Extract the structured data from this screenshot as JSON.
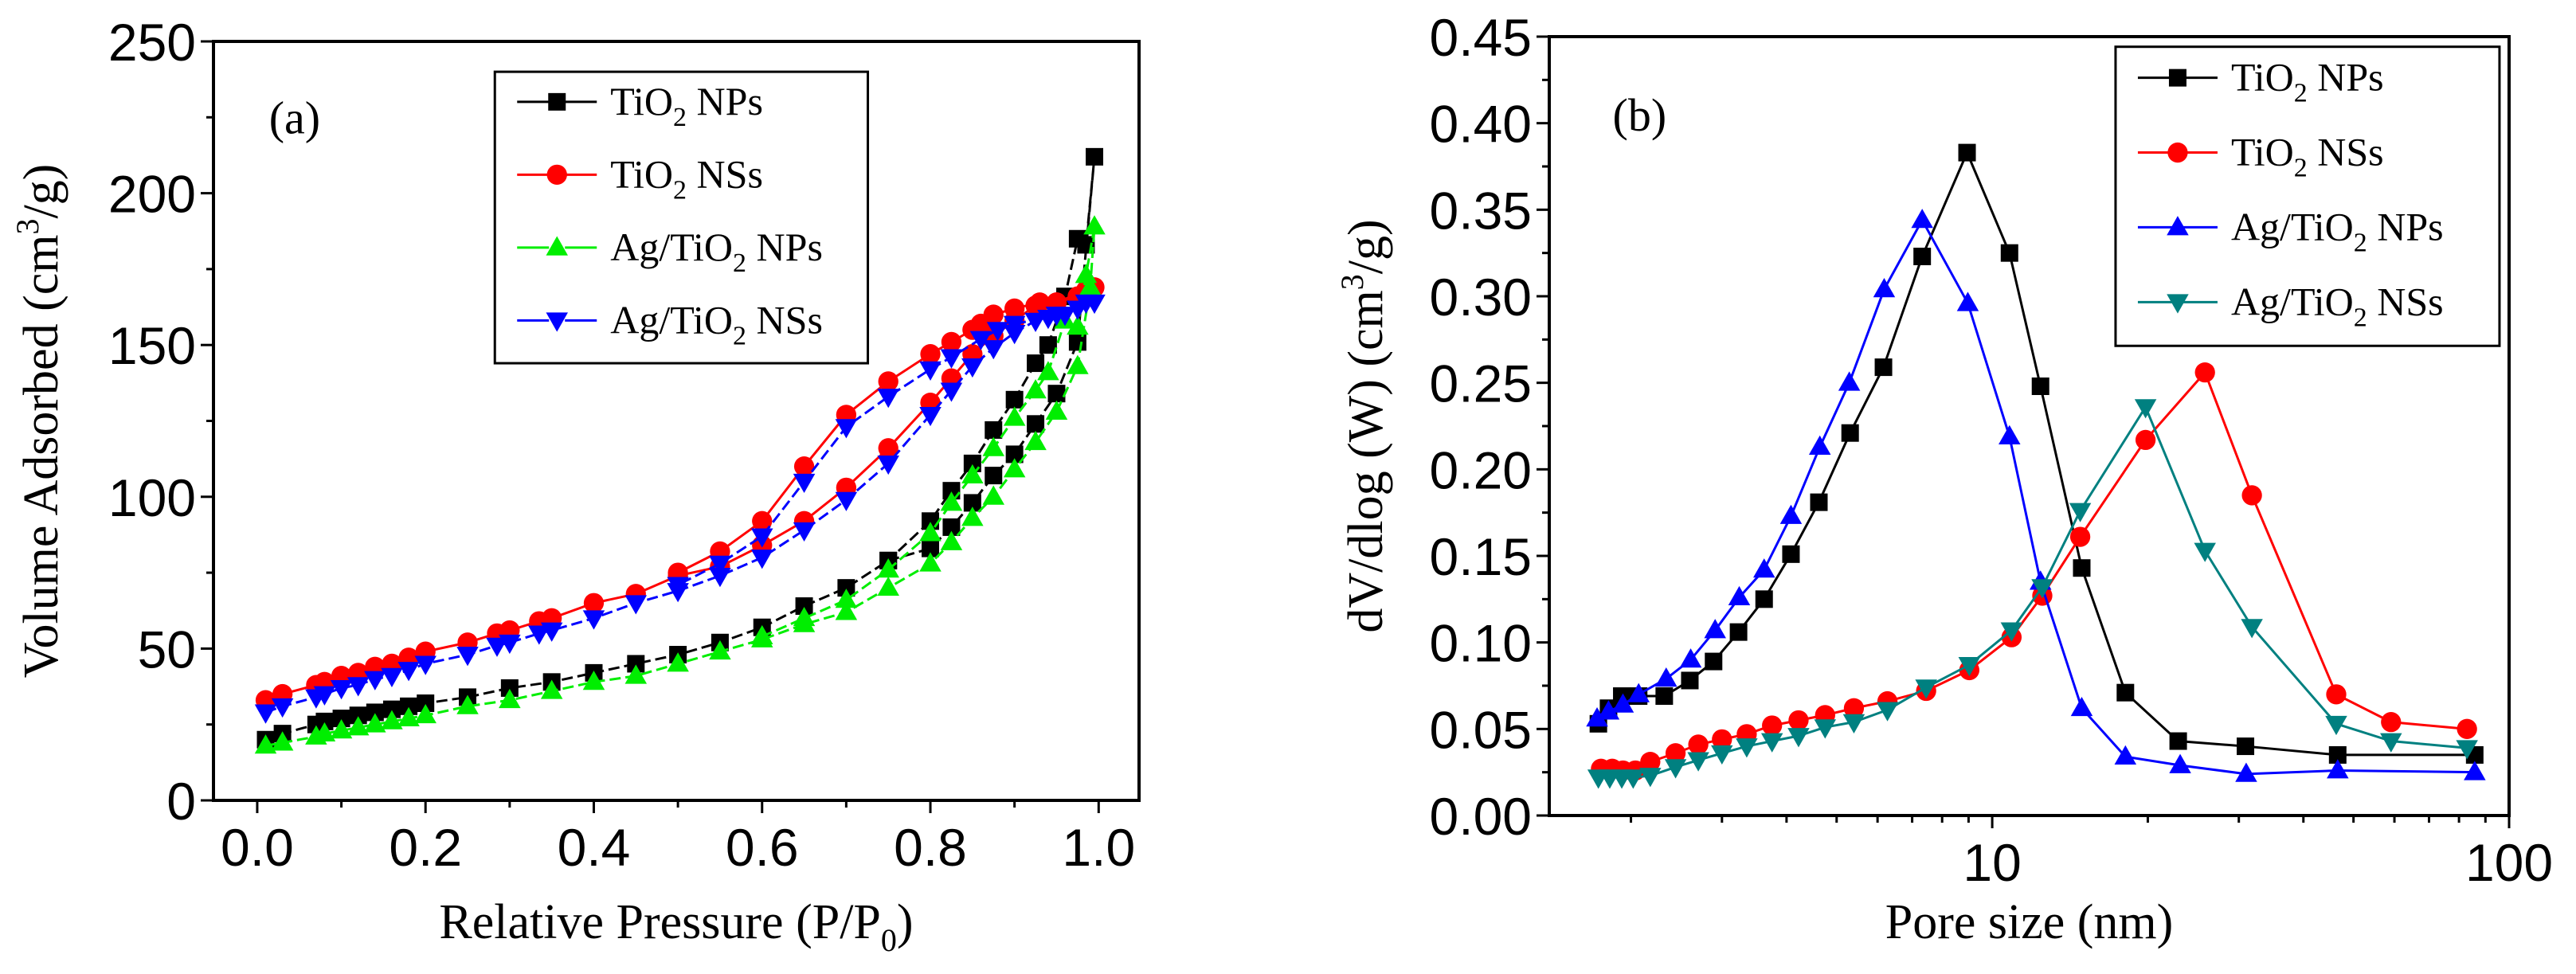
{
  "chart_data": [
    {
      "type": "line",
      "panel_label": "(a)",
      "xlabel": {
        "pre": "Relative Pressure (P/P",
        "sub": "0",
        "post": ")"
      },
      "ylabel": {
        "pre": "Volume Adsorbed (cm",
        "sup": "3",
        "post": "/g)"
      },
      "xlim": [
        -0.052,
        1.048
      ],
      "ylim": [
        0,
        250
      ],
      "xscale": "linear",
      "xticks": [
        0.0,
        0.2,
        0.4,
        0.6,
        0.8,
        1.0
      ],
      "xtick_labels": [
        "0.0",
        "0.2",
        "0.4",
        "0.6",
        "0.8",
        "1.0"
      ],
      "yticks": [
        0,
        50,
        100,
        150,
        200,
        250
      ],
      "ytick_labels": [
        "0",
        "50",
        "100",
        "150",
        "200",
        "250"
      ],
      "legend_position": "top-center",
      "series": [
        {
          "name": {
            "pre": "TiO",
            "sub": "2",
            "post": " NPs"
          },
          "color": "#000000",
          "marker": "square",
          "dashed": true,
          "x": [
            0.01,
            0.03,
            0.07,
            0.08,
            0.1,
            0.12,
            0.14,
            0.16,
            0.18,
            0.2,
            0.25,
            0.3,
            0.35,
            0.4,
            0.45,
            0.5,
            0.55,
            0.6,
            0.65,
            0.7,
            0.75,
            0.8,
            0.825,
            0.85,
            0.875,
            0.9,
            0.925,
            0.95,
            0.975,
            0.995,
            0.985,
            0.975,
            0.96,
            0.94,
            0.925,
            0.9,
            0.875,
            0.85,
            0.825,
            0.8,
            0.75
          ],
          "y": [
            20,
            22,
            25,
            26,
            27,
            28,
            29,
            30,
            31,
            32,
            34,
            37,
            39,
            42,
            45,
            48,
            52,
            57,
            64,
            70,
            79,
            83,
            90,
            98,
            107,
            114,
            124,
            134,
            151,
            212,
            183,
            185,
            166,
            150,
            144,
            132,
            122,
            111,
            102,
            92,
            79
          ]
        },
        {
          "name": {
            "pre": "TiO",
            "sub": "2",
            "post": " NSs"
          },
          "color": "#ff0000",
          "marker": "circle",
          "dashed": false,
          "x": [
            0.01,
            0.03,
            0.07,
            0.08,
            0.1,
            0.12,
            0.14,
            0.16,
            0.18,
            0.2,
            0.25,
            0.285,
            0.3,
            0.335,
            0.35,
            0.4,
            0.45,
            0.5,
            0.55,
            0.6,
            0.65,
            0.7,
            0.75,
            0.8,
            0.825,
            0.85,
            0.875,
            0.9,
            0.925,
            0.95,
            0.975,
            0.995,
            0.985,
            0.95,
            0.93,
            0.9,
            0.875,
            0.86,
            0.85,
            0.825,
            0.8,
            0.75,
            0.7,
            0.65,
            0.6,
            0.55,
            0.5
          ],
          "y": [
            33,
            35,
            38,
            39,
            41,
            42,
            44,
            45,
            47,
            49,
            52,
            55,
            56,
            59,
            60,
            65,
            68,
            74,
            77,
            84,
            92,
            103,
            116,
            131,
            139,
            147,
            153,
            158,
            163,
            164,
            166,
            169,
            168,
            164,
            164,
            162,
            160,
            157,
            155,
            151,
            147,
            138,
            127,
            110,
            92,
            82,
            75
          ]
        },
        {
          "name": {
            "pre": "Ag/TiO",
            "sub": "2",
            "post": " NPs"
          },
          "color": "#00ee00",
          "marker": "triangle-up",
          "dashed": true,
          "x": [
            0.01,
            0.03,
            0.07,
            0.08,
            0.1,
            0.12,
            0.14,
            0.16,
            0.18,
            0.2,
            0.25,
            0.3,
            0.35,
            0.4,
            0.45,
            0.5,
            0.55,
            0.6,
            0.65,
            0.7,
            0.75,
            0.8,
            0.825,
            0.85,
            0.875,
            0.9,
            0.925,
            0.95,
            0.975,
            0.99,
            0.995,
            0.985,
            0.975,
            0.96,
            0.94,
            0.925,
            0.9,
            0.875,
            0.85,
            0.825,
            0.8,
            0.75,
            0.7,
            0.65,
            0.6
          ],
          "y": [
            18,
            19,
            21,
            22,
            23,
            24,
            25,
            26,
            27,
            28,
            31,
            33,
            36,
            39,
            41,
            45,
            49,
            53,
            58,
            62,
            70,
            78,
            85,
            93,
            100,
            109,
            118,
            128,
            143,
            169,
            189,
            173,
            156,
            158,
            141,
            135,
            126,
            116,
            107,
            98,
            88,
            76,
            66,
            60,
            54
          ]
        },
        {
          "name": {
            "pre": "Ag/TiO",
            "sub": "2",
            "post": " NSs"
          },
          "color": "#0000ff",
          "marker": "triangle-down",
          "dashed": true,
          "x": [
            0.01,
            0.03,
            0.07,
            0.08,
            0.1,
            0.12,
            0.14,
            0.16,
            0.18,
            0.2,
            0.25,
            0.285,
            0.3,
            0.335,
            0.35,
            0.4,
            0.45,
            0.5,
            0.55,
            0.6,
            0.65,
            0.7,
            0.75,
            0.8,
            0.825,
            0.85,
            0.875,
            0.9,
            0.925,
            0.95,
            0.975,
            0.995,
            0.985,
            0.96,
            0.94,
            0.9,
            0.88,
            0.86,
            0.825,
            0.8,
            0.75,
            0.7,
            0.65,
            0.6,
            0.55,
            0.5
          ],
          "y": [
            29,
            31,
            34,
            35,
            37,
            38,
            40,
            41,
            43,
            45,
            48,
            51,
            52,
            55,
            56,
            60,
            65,
            69,
            74,
            80,
            89,
            99,
            111,
            127,
            135,
            143,
            149,
            154,
            158,
            160,
            162,
            164,
            164,
            160,
            159,
            157,
            155,
            152,
            146,
            142,
            133,
            123,
            105,
            87,
            78,
            71
          ]
        }
      ]
    },
    {
      "type": "line",
      "panel_label": "(b)",
      "xlabel": {
        "pre": "Pore size (nm)",
        "sub": "",
        "post": ""
      },
      "ylabel": {
        "pre": "dV/dlog (W) (cm",
        "sup": "3",
        "post": "/g)"
      },
      "xlim": [
        1.39,
        100
      ],
      "ylim": [
        0,
        0.45
      ],
      "xscale": "log",
      "xticks": [
        10,
        100
      ],
      "xtick_labels": [
        "10",
        "100"
      ],
      "yticks": [
        0,
        0.05,
        0.1,
        0.15,
        0.2,
        0.25,
        0.3,
        0.35,
        0.4,
        0.45
      ],
      "ytick_labels": [
        "0.00",
        "0.05",
        "0.10",
        "0.15",
        "0.20",
        "0.25",
        "0.30",
        "0.35",
        "0.40",
        "0.45"
      ],
      "legend_position": "top-right",
      "series": [
        {
          "name": {
            "pre": "TiO",
            "sub": "2",
            "post": " NPs"
          },
          "color": "#000000",
          "marker": "square",
          "dashed": false,
          "x": [
            1.73,
            1.81,
            1.92,
            2.07,
            2.32,
            2.6,
            2.89,
            3.23,
            3.62,
            4.08,
            4.62,
            5.31,
            6.16,
            7.32,
            8.94,
            10.8,
            12.4,
            14.9,
            18.1,
            22.9,
            30.9,
            46.6,
            85.8
          ],
          "y": [
            0.053,
            0.062,
            0.069,
            0.069,
            0.069,
            0.078,
            0.089,
            0.106,
            0.125,
            0.151,
            0.181,
            0.221,
            0.259,
            0.323,
            0.383,
            0.325,
            0.248,
            0.143,
            0.071,
            0.043,
            0.04,
            0.035,
            0.035
          ]
        },
        {
          "name": {
            "pre": "TiO",
            "sub": "2",
            "post": " NSs"
          },
          "color": "#ff0000",
          "marker": "circle",
          "dashed": false,
          "x": [
            1.75,
            1.84,
            1.93,
            2.04,
            2.18,
            2.44,
            2.7,
            3.0,
            3.35,
            3.75,
            4.22,
            4.75,
            5.4,
            6.27,
            7.45,
            9.03,
            10.9,
            12.5,
            14.8,
            19.8,
            25.8,
            31.8,
            46.3,
            59.1,
            82.9
          ],
          "y": [
            0.027,
            0.027,
            0.026,
            0.026,
            0.031,
            0.036,
            0.041,
            0.044,
            0.047,
            0.052,
            0.055,
            0.058,
            0.062,
            0.066,
            0.072,
            0.084,
            0.103,
            0.127,
            0.161,
            0.217,
            0.256,
            0.185,
            0.07,
            0.054,
            0.05
          ]
        },
        {
          "name": {
            "pre": "Ag/TiO",
            "sub": "2",
            "post": " NPs"
          },
          "color": "#0000ff",
          "marker": "triangle-up",
          "dashed": false,
          "x": [
            1.72,
            1.81,
            1.93,
            2.07,
            2.34,
            2.61,
            2.91,
            3.24,
            3.62,
            4.08,
            4.64,
            5.29,
            6.18,
            7.32,
            8.97,
            10.8,
            12.4,
            14.9,
            18.1,
            23.1,
            31.0,
            46.6,
            85.8
          ],
          "y": [
            0.056,
            0.06,
            0.064,
            0.07,
            0.079,
            0.09,
            0.107,
            0.126,
            0.142,
            0.173,
            0.213,
            0.25,
            0.304,
            0.344,
            0.296,
            0.219,
            0.135,
            0.062,
            0.034,
            0.029,
            0.024,
            0.026,
            0.025
          ]
        },
        {
          "name": {
            "pre": "Ag/TiO",
            "sub": "2",
            "post": " NSs"
          },
          "color": "#008080",
          "marker": "triangle-down",
          "dashed": false,
          "x": [
            1.73,
            1.82,
            1.92,
            2.02,
            2.18,
            2.44,
            2.7,
            3.0,
            3.35,
            3.75,
            4.22,
            4.75,
            5.4,
            6.27,
            7.45,
            9.03,
            10.9,
            12.5,
            14.8,
            19.8,
            25.8,
            31.8,
            46.3,
            59.1,
            82.9
          ],
          "y": [
            0.022,
            0.022,
            0.022,
            0.022,
            0.023,
            0.028,
            0.032,
            0.036,
            0.04,
            0.043,
            0.046,
            0.051,
            0.054,
            0.061,
            0.074,
            0.087,
            0.107,
            0.132,
            0.176,
            0.236,
            0.153,
            0.109,
            0.053,
            0.043,
            0.039
          ]
        }
      ]
    }
  ]
}
